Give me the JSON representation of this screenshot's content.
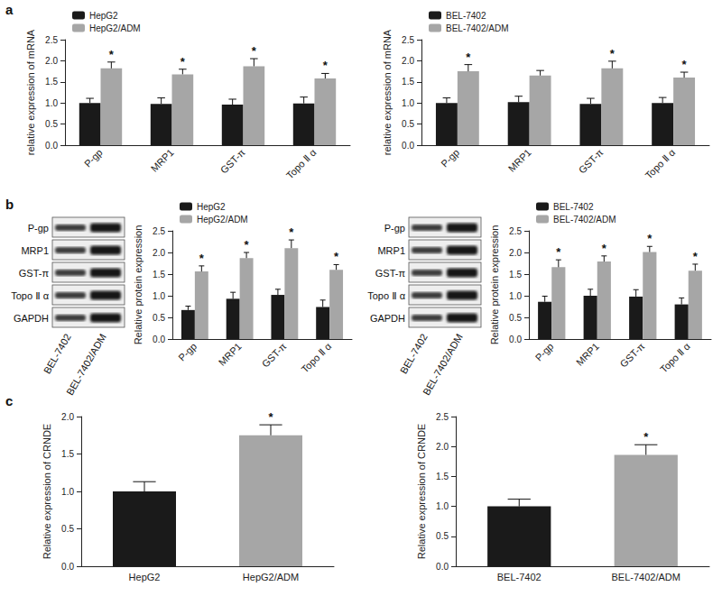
{
  "panel_labels": [
    "a",
    "b",
    "c"
  ],
  "chart_data": [
    {
      "type": "bar",
      "categories": [
        "P-gp",
        "MRP1",
        "GST-π",
        "Topo Ⅱ α"
      ],
      "series": [
        {
          "name": "HepG2",
          "color": "#1a1a1a",
          "values": [
            1.0,
            0.98,
            0.96,
            0.99
          ],
          "errors": [
            0.11,
            0.14,
            0.13,
            0.15
          ],
          "annotations": [
            null,
            null,
            null,
            null
          ]
        },
        {
          "name": "HepG2/ADM",
          "color": "#a6a6a6",
          "values": [
            1.82,
            1.68,
            1.87,
            1.58
          ],
          "errors": [
            0.15,
            0.12,
            0.18,
            0.12
          ],
          "annotations": [
            "*",
            "*",
            "*",
            "*"
          ]
        }
      ],
      "y_label": "relative expression of mRNA",
      "ylim": [
        0,
        2.5
      ],
      "yticks": [
        {
          "value": 0,
          "label": "0.0"
        },
        0.5,
        {
          "value": 1,
          "label": "1.0"
        },
        1.5,
        {
          "value": 2,
          "label": "2.0"
        },
        2.5
      ],
      "grid": false,
      "legend": "upper left"
    },
    {
      "type": "bar",
      "categories": [
        "P-gp",
        "MRP1",
        "GST-π",
        "Topo Ⅱ α"
      ],
      "series": [
        {
          "name": "BEL-7402",
          "color": "#1a1a1a",
          "values": [
            1.0,
            1.02,
            0.98,
            1.0
          ],
          "errors": [
            0.12,
            0.14,
            0.13,
            0.13
          ],
          "annotations": [
            null,
            null,
            null,
            null
          ]
        },
        {
          "name": "BEL-7402/ADM",
          "color": "#a6a6a6",
          "values": [
            1.75,
            1.65,
            1.82,
            1.6
          ],
          "errors": [
            0.16,
            0.12,
            0.17,
            0.13
          ],
          "annotations": [
            "*",
            null,
            "*",
            "*"
          ]
        }
      ],
      "y_label": "relative expression of mRNA",
      "ylim": [
        0,
        2.5
      ],
      "yticks": [
        {
          "value": 0,
          "label": "0.0"
        },
        0.5,
        {
          "value": 1,
          "label": "1.0"
        },
        1.5,
        {
          "value": 2,
          "label": "2.0"
        },
        2.5
      ],
      "grid": false,
      "legend": "upper left"
    },
    {
      "type": "bar",
      "categories": [
        "P-gp",
        "MRP1",
        "GST-π",
        "Topo Ⅱ α"
      ],
      "series": [
        {
          "name": "HepG2",
          "color": "#1a1a1a",
          "values": [
            0.67,
            0.93,
            1.02,
            0.74
          ],
          "errors": [
            0.09,
            0.15,
            0.13,
            0.16
          ],
          "annotations": [
            null,
            null,
            null,
            null
          ]
        },
        {
          "name": "HepG2/ADM",
          "color": "#a6a6a6",
          "values": [
            1.56,
            1.87,
            2.1,
            1.6
          ],
          "errors": [
            0.13,
            0.13,
            0.19,
            0.12
          ],
          "annotations": [
            "*",
            "*",
            "*",
            "*"
          ]
        }
      ],
      "y_label": "Relative protein expression",
      "ylim": [
        0,
        2.5
      ],
      "yticks": [
        {
          "value": 0,
          "label": "0.0"
        },
        0.5,
        {
          "value": 1,
          "label": "1.0"
        },
        1.5,
        {
          "value": 2,
          "label": "2.0"
        },
        2.5
      ],
      "grid": false,
      "legend": "upper left"
    },
    {
      "type": "bar",
      "categories": [
        "P-gp",
        "MRP1",
        "GST-π",
        "Topo Ⅱ α"
      ],
      "series": [
        {
          "name": "BEL-7402",
          "color": "#1a1a1a",
          "values": [
            0.86,
            1.0,
            0.98,
            0.8
          ],
          "errors": [
            0.13,
            0.15,
            0.16,
            0.15
          ],
          "annotations": [
            null,
            null,
            null,
            null
          ]
        },
        {
          "name": "BEL-7402/ADM",
          "color": "#a6a6a6",
          "values": [
            1.66,
            1.79,
            2.01,
            1.58
          ],
          "errors": [
            0.17,
            0.13,
            0.13,
            0.15
          ],
          "annotations": [
            "*",
            "*",
            "*",
            "*"
          ]
        }
      ],
      "y_label": "Relative protein expression",
      "ylim": [
        0,
        2.5
      ],
      "yticks": [
        {
          "value": 0,
          "label": "0.0"
        },
        0.5,
        {
          "value": 1,
          "label": "1.0"
        },
        1.5,
        {
          "value": 2,
          "label": "2.0"
        },
        2.5
      ],
      "grid": false,
      "legend": "upper left"
    },
    {
      "type": "bar",
      "categories": [
        "HepG2",
        "HepG2/ADM"
      ],
      "values": [
        1.0,
        1.75
      ],
      "errors": [
        0.13,
        0.14
      ],
      "annotations": [
        null,
        "*"
      ],
      "colors": [
        "#1a1a1a",
        "#a6a6a6"
      ],
      "y_label": "Relative expression of CRNDE",
      "ylim": [
        0,
        2
      ],
      "yticks": [
        {
          "value": 0,
          "label": "0.0"
        },
        0.5,
        {
          "value": 1,
          "label": "1.0"
        },
        1.5,
        {
          "value": 2,
          "label": "2.0"
        }
      ],
      "grid": false
    },
    {
      "type": "bar",
      "categories": [
        "BEL-7402",
        "BEL-7402/ADM"
      ],
      "values": [
        1.0,
        1.86
      ],
      "errors": [
        0.12,
        0.17
      ],
      "annotations": [
        null,
        "*"
      ],
      "colors": [
        "#1a1a1a",
        "#a6a6a6"
      ],
      "y_label": "Relative expression of CRNDE",
      "ylim": [
        0,
        2.5
      ],
      "yticks": [
        {
          "value": 0,
          "label": "0.0"
        },
        0.5,
        {
          "value": 1,
          "label": "1.0"
        },
        1.5,
        {
          "value": 2,
          "label": "2.0"
        },
        2.5
      ],
      "grid": false
    }
  ],
  "blots": [
    {
      "rows": [
        "P-gp",
        "MRP1",
        "GST-π",
        "Topo Ⅱ α",
        "GAPDH"
      ],
      "columns": [
        "BEL-7402",
        "BEL-7402/ADM"
      ]
    },
    {
      "rows": [
        "P-gp",
        "MRP1",
        "GST-π",
        "Topo Ⅱ α",
        "GAPDH"
      ],
      "columns": [
        "BEL-7402",
        "BEL-7402/ADM"
      ]
    }
  ]
}
